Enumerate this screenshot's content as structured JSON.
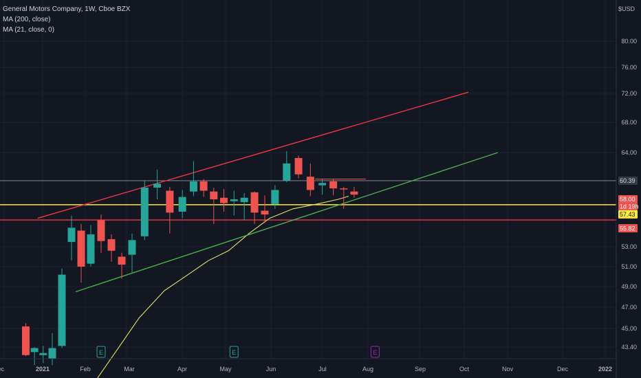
{
  "legend": {
    "title": "General Motors Company, 1W, Cboe BZX",
    "ma200": "MA (200, close)",
    "ma21": "MA (21, close, 0)"
  },
  "currency": "USD",
  "colors": {
    "background": "#131722",
    "grid": "#1e222d",
    "up": "#26a69a",
    "down": "#ef5350",
    "red_line": "#f23645",
    "green_line": "#4caf50",
    "yellow_line": "#ffeb3b",
    "ma21": "#e8e06a"
  },
  "chart_data": {
    "type": "candlestick",
    "title": "General Motors Company, 1W, Cboe BZX",
    "y_ticks": [
      "80.00",
      "76.00",
      "72.00",
      "68.00",
      "64.00",
      "60.39",
      "58.00",
      "57.43",
      "55.82",
      "53.00",
      "51.00",
      "49.00",
      "47.00",
      "45.00",
      "43.40"
    ],
    "x_ticks": [
      "Dec",
      "2021",
      "Feb",
      "Mar",
      "Apr",
      "May",
      "Jun",
      "Jul",
      "Aug",
      "Sep",
      "Oct",
      "Nov",
      "Dec",
      "2022"
    ],
    "candles": [
      {
        "week": "2020-12-14",
        "open": 45.2,
        "high": 45.5,
        "low": 42.5,
        "close": 42.6
      },
      {
        "week": "2020-12-21",
        "open": 42.9,
        "high": 43.4,
        "low": 41.6,
        "close": 43.3
      },
      {
        "week": "2020-12-28",
        "open": 42.6,
        "high": 43.5,
        "low": 41.8,
        "close": 42.8
      },
      {
        "week": "2021-01-04",
        "open": 42.2,
        "high": 44.6,
        "low": 41.6,
        "close": 43.3
      },
      {
        "week": "2021-01-11",
        "open": 43.5,
        "high": 50.8,
        "low": 43.3,
        "close": 50.2
      },
      {
        "week": "2021-01-18",
        "open": 53.5,
        "high": 56.3,
        "low": 51.6,
        "close": 55.0
      },
      {
        "week": "2021-01-25",
        "open": 54.7,
        "high": 55.4,
        "low": 49.4,
        "close": 51.0
      },
      {
        "week": "2021-02-01",
        "open": 51.3,
        "high": 55.3,
        "low": 51.0,
        "close": 54.3
      },
      {
        "week": "2021-02-08",
        "open": 55.8,
        "high": 56.4,
        "low": 52.4,
        "close": 53.6
      },
      {
        "week": "2021-02-15",
        "open": 53.8,
        "high": 54.3,
        "low": 51.5,
        "close": 52.6
      },
      {
        "week": "2021-02-22",
        "open": 52.0,
        "high": 52.4,
        "low": 49.8,
        "close": 51.2
      },
      {
        "week": "2021-03-01",
        "open": 52.2,
        "high": 54.4,
        "low": 50.4,
        "close": 53.7
      },
      {
        "week": "2021-03-08",
        "open": 54.1,
        "high": 60.4,
        "low": 53.7,
        "close": 59.5
      },
      {
        "week": "2021-03-15",
        "open": 59.5,
        "high": 61.8,
        "low": 58.0,
        "close": 60.0
      },
      {
        "week": "2021-03-22",
        "open": 59.1,
        "high": 59.6,
        "low": 54.4,
        "close": 56.6
      },
      {
        "week": "2021-03-29",
        "open": 56.7,
        "high": 59.2,
        "low": 56.0,
        "close": 58.3
      },
      {
        "week": "2021-04-05",
        "open": 59.0,
        "high": 62.9,
        "low": 58.4,
        "close": 60.3
      },
      {
        "week": "2021-04-12",
        "open": 60.3,
        "high": 60.6,
        "low": 58.3,
        "close": 59.1
      },
      {
        "week": "2021-04-19",
        "open": 59.0,
        "high": 59.5,
        "low": 55.4,
        "close": 58.0
      },
      {
        "week": "2021-04-26",
        "open": 58.2,
        "high": 59.3,
        "low": 56.7,
        "close": 57.6
      },
      {
        "week": "2021-05-03",
        "open": 57.8,
        "high": 59.1,
        "low": 56.3,
        "close": 58.0
      },
      {
        "week": "2021-05-10",
        "open": 57.7,
        "high": 58.8,
        "low": 55.8,
        "close": 58.2
      },
      {
        "week": "2021-05-17",
        "open": 58.9,
        "high": 59.0,
        "low": 55.4,
        "close": 56.6
      },
      {
        "week": "2021-05-24",
        "open": 56.8,
        "high": 58.5,
        "low": 55.5,
        "close": 56.4
      },
      {
        "week": "2021-05-31",
        "open": 57.5,
        "high": 59.8,
        "low": 57.0,
        "close": 59.2
      },
      {
        "week": "2021-06-07",
        "open": 60.4,
        "high": 64.2,
        "low": 60.2,
        "close": 62.6
      },
      {
        "week": "2021-06-14",
        "open": 63.3,
        "high": 63.6,
        "low": 60.7,
        "close": 61.2
      },
      {
        "week": "2021-06-21",
        "open": 60.9,
        "high": 62.6,
        "low": 58.4,
        "close": 59.2
      },
      {
        "week": "2021-06-28",
        "open": 59.8,
        "high": 60.6,
        "low": 58.6,
        "close": 60.1
      },
      {
        "week": "2021-07-05",
        "open": 60.3,
        "high": 60.6,
        "low": 58.5,
        "close": 59.4
      },
      {
        "week": "2021-07-12",
        "open": 59.4,
        "high": 59.6,
        "low": 57.0,
        "close": 59.3
      },
      {
        "week": "2021-07-19",
        "open": 59.0,
        "high": 59.6,
        "low": 58.2,
        "close": 58.6
      }
    ],
    "trendlines": [
      {
        "name": "Upper channel",
        "color": "red",
        "from": {
          "date": "2020-12-28",
          "price": 56.0
        },
        "to": {
          "date": "2021-10-04",
          "price": 72.2
        }
      },
      {
        "name": "Lower channel",
        "color": "green",
        "from": {
          "date": "2021-01-25",
          "price": 48.5
        },
        "to": {
          "date": "2021-10-25",
          "price": 64.0
        }
      }
    ],
    "horizontal_lines": [
      {
        "price": 57.43,
        "color": "yellow"
      },
      {
        "price": 55.82,
        "color": "red"
      },
      {
        "price": 60.39,
        "color": "gray"
      }
    ],
    "price_labels": [
      {
        "text": "60.39",
        "type": "last_price"
      },
      {
        "text": "58.00",
        "type": "current"
      },
      {
        "text": "1d 19h",
        "type": "countdown"
      },
      {
        "text": "57.43",
        "type": "level"
      },
      {
        "text": "55.82",
        "type": "level"
      }
    ],
    "earnings_markers": [
      {
        "date": "2021-02-08",
        "label": "E",
        "status": "past"
      },
      {
        "date": "2021-05-03",
        "label": "E",
        "status": "past"
      },
      {
        "date": "2021-08-02",
        "label": "E",
        "status": "upcoming"
      }
    ]
  }
}
